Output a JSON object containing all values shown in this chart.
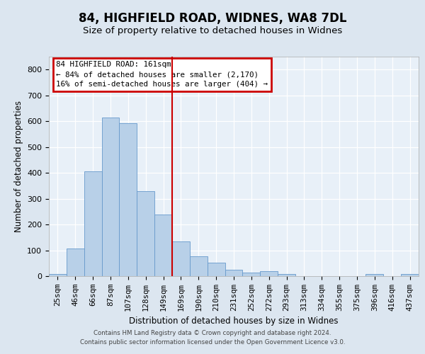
{
  "title": "84, HIGHFIELD ROAD, WIDNES, WA8 7DL",
  "subtitle": "Size of property relative to detached houses in Widnes",
  "xlabel": "Distribution of detached houses by size in Widnes",
  "ylabel": "Number of detached properties",
  "bar_labels": [
    "25sqm",
    "46sqm",
    "66sqm",
    "87sqm",
    "107sqm",
    "128sqm",
    "149sqm",
    "169sqm",
    "190sqm",
    "210sqm",
    "231sqm",
    "252sqm",
    "272sqm",
    "293sqm",
    "313sqm",
    "334sqm",
    "355sqm",
    "375sqm",
    "396sqm",
    "416sqm",
    "437sqm"
  ],
  "bar_values": [
    7,
    107,
    405,
    614,
    592,
    330,
    238,
    135,
    78,
    53,
    24,
    14,
    18,
    8,
    0,
    0,
    0,
    0,
    8,
    0,
    8
  ],
  "bar_color": "#b8d0e8",
  "bar_edge_color": "#6699cc",
  "reference_line_x": 6.5,
  "ref_line_color": "#cc0000",
  "annotation_line1": "84 HIGHFIELD ROAD: 161sqm",
  "annotation_line2": "← 84% of detached houses are smaller (2,170)",
  "annotation_line3": "16% of semi-detached houses are larger (404) →",
  "annotation_box_face": "#ffffff",
  "annotation_box_edge": "#cc0000",
  "bg_color": "#dce6f0",
  "plot_bg_color": "#e8f0f8",
  "ylim": [
    0,
    850
  ],
  "yticks": [
    0,
    100,
    200,
    300,
    400,
    500,
    600,
    700,
    800
  ],
  "footer1": "Contains HM Land Registry data © Crown copyright and database right 2024.",
  "footer2": "Contains public sector information licensed under the Open Government Licence v3.0."
}
